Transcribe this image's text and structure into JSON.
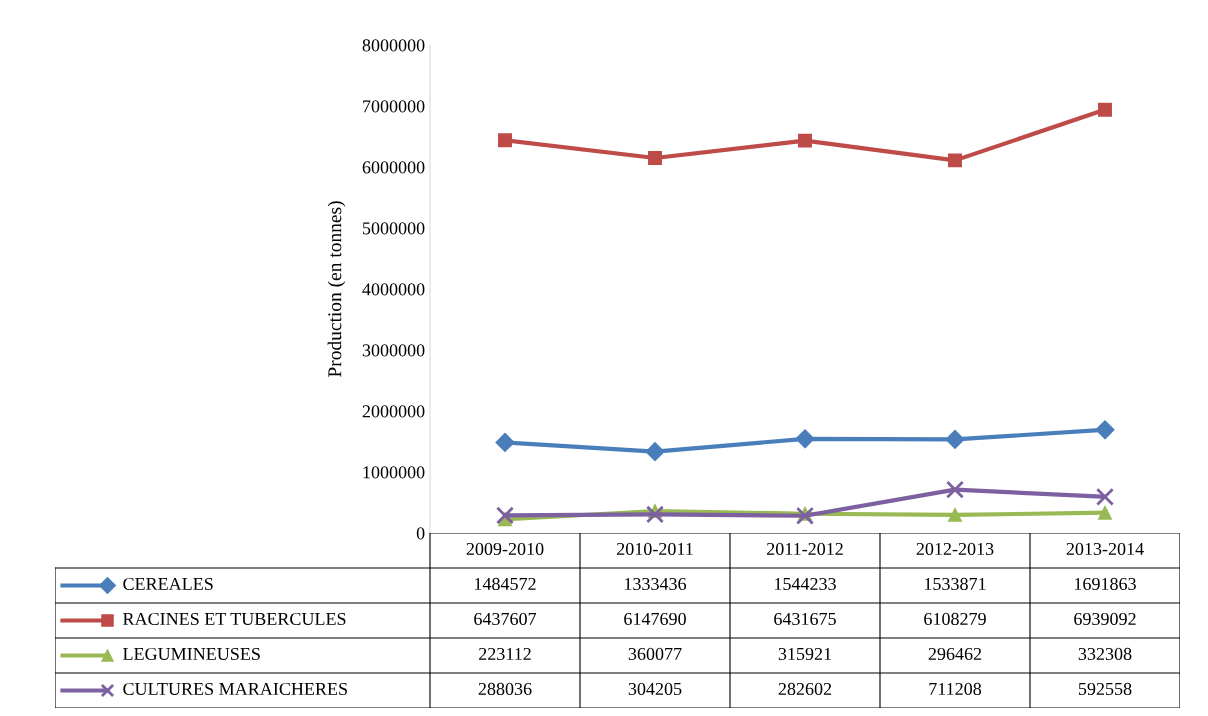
{
  "chart_data": {
    "type": "line",
    "ylabel": "Production (en tonnes)",
    "categories": [
      "2009-2010",
      "2010-2011",
      "2011-2012",
      "2012-2013",
      "2013-2014"
    ],
    "series": [
      {
        "name": "CEREALES",
        "color": "#4a7ebb",
        "marker": "diamond",
        "values": [
          1484572,
          1333436,
          1544233,
          1533871,
          1691863
        ]
      },
      {
        "name": "RACINES ET TUBERCULES",
        "color": "#be4b48",
        "marker": "square",
        "values": [
          6437607,
          6147690,
          6431675,
          6108279,
          6939092
        ]
      },
      {
        "name": "LEGUMINEUSES",
        "color": "#98b954",
        "marker": "triangle",
        "values": [
          223112,
          360077,
          315921,
          296462,
          332308
        ]
      },
      {
        "name": "CULTURES MARAICHERES",
        "color": "#7d60a0",
        "marker": "cross",
        "values": [
          288036,
          304205,
          282602,
          711208,
          592558
        ]
      }
    ],
    "ylim": [
      0,
      8000000
    ],
    "yticks": [
      0,
      1000000,
      2000000,
      3000000,
      4000000,
      5000000,
      6000000,
      7000000,
      8000000
    ],
    "grid": false,
    "legend": "bottom",
    "data_labels": true
  }
}
